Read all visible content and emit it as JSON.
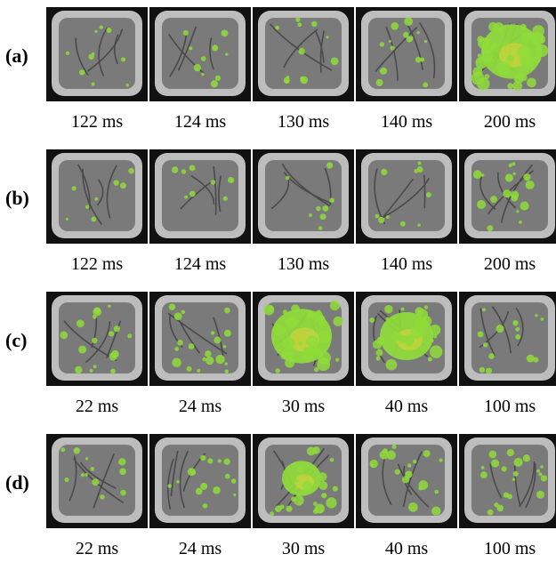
{
  "rows": [
    {
      "label": "(a)",
      "times": [
        "122 ms",
        "124 ms",
        "130 ms",
        "140 ms",
        "200 ms"
      ],
      "activation": [
        0.12,
        0.14,
        0.2,
        0.3,
        0.85
      ]
    },
    {
      "label": "(b)",
      "times": [
        "122 ms",
        "124 ms",
        "130 ms",
        "140 ms",
        "200 ms"
      ],
      "activation": [
        0.05,
        0.06,
        0.07,
        0.12,
        0.35
      ]
    },
    {
      "label": "(c)",
      "times": [
        "22 ms",
        "24 ms",
        "30 ms",
        "40 ms",
        "100 ms"
      ],
      "activation": [
        0.35,
        0.45,
        0.85,
        0.75,
        0.25
      ]
    },
    {
      "label": "(d)",
      "times": [
        "22 ms",
        "24 ms",
        "30 ms",
        "40 ms",
        "100 ms"
      ],
      "activation": [
        0.2,
        0.3,
        0.55,
        0.4,
        0.45
      ]
    }
  ],
  "colors": {
    "activation": "#8fdc3a",
    "activation_core": "#d8d23a",
    "tissue": "#7a7a7a",
    "background": "#111111"
  }
}
